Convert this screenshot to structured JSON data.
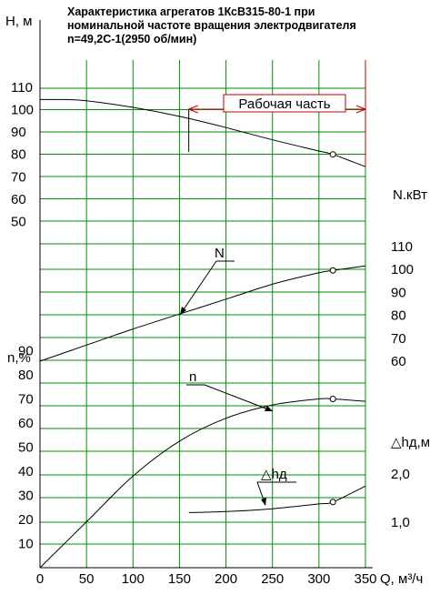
{
  "chart_data": {
    "type": "line",
    "title": [
      "Характеристика агрегатов 1КсВ315-80-1 при",
      "номинальной частоте вращения электродвигателя",
      "n=49,2С-1(2950 об/мин)"
    ],
    "xlabel": "Q, м³/ч",
    "xlim": [
      0,
      350
    ],
    "x_ticks": [
      "0",
      "50",
      "100",
      "150",
      "200",
      "250",
      "300",
      "350"
    ],
    "x_tick_values": [
      0,
      50,
      100,
      150,
      200,
      250,
      300,
      350
    ],
    "h_axis": {
      "label": "H, м",
      "ticks": [
        "110",
        "100",
        "90",
        "80",
        "70",
        "60",
        "50"
      ]
    },
    "n_axis": {
      "label": "N.кВт",
      "ticks": [
        "110",
        "100",
        "90",
        "80",
        "70",
        "60"
      ]
    },
    "eff_axis": {
      "label": "n,%",
      "ticks": [
        "90",
        "80",
        "70",
        "60",
        "50",
        "40",
        "30",
        "20",
        "10"
      ]
    },
    "npsh_axis": {
      "label": "△hд,м",
      "ticks": [
        "2,0",
        "1,0"
      ]
    },
    "working_zone": {
      "label": "Рабочая часть",
      "from": 160,
      "to": 350
    },
    "series": [
      {
        "name": "H",
        "x": [
          0,
          25,
          50,
          100,
          150,
          200,
          250,
          300,
          315,
          350
        ],
        "y": [
          104.5,
          104.5,
          104,
          101,
          97,
          92,
          86.5,
          81.5,
          80,
          74.5
        ],
        "marker_x": 315
      },
      {
        "name": "N",
        "x": [
          0,
          50,
          100,
          150,
          200,
          250,
          300,
          315,
          350
        ],
        "y": [
          60,
          67,
          74,
          80.5,
          87,
          93.5,
          98.5,
          99.5,
          101.5
        ],
        "marker_x": 315
      },
      {
        "name": "n",
        "x": [
          0,
          50,
          100,
          150,
          200,
          250,
          300,
          315,
          350
        ],
        "y": [
          0,
          19,
          38,
          52.5,
          62,
          67.5,
          70,
          70,
          69
        ],
        "marker_x": 315
      },
      {
        "name": "△hд",
        "x": [
          160,
          200,
          250,
          300,
          315,
          350
        ],
        "y": [
          1.2,
          1.22,
          1.28,
          1.38,
          1.42,
          1.75
        ],
        "marker_x": 315
      }
    ],
    "annotations": [
      "N",
      "n",
      "△hд"
    ],
    "grid": true
  }
}
